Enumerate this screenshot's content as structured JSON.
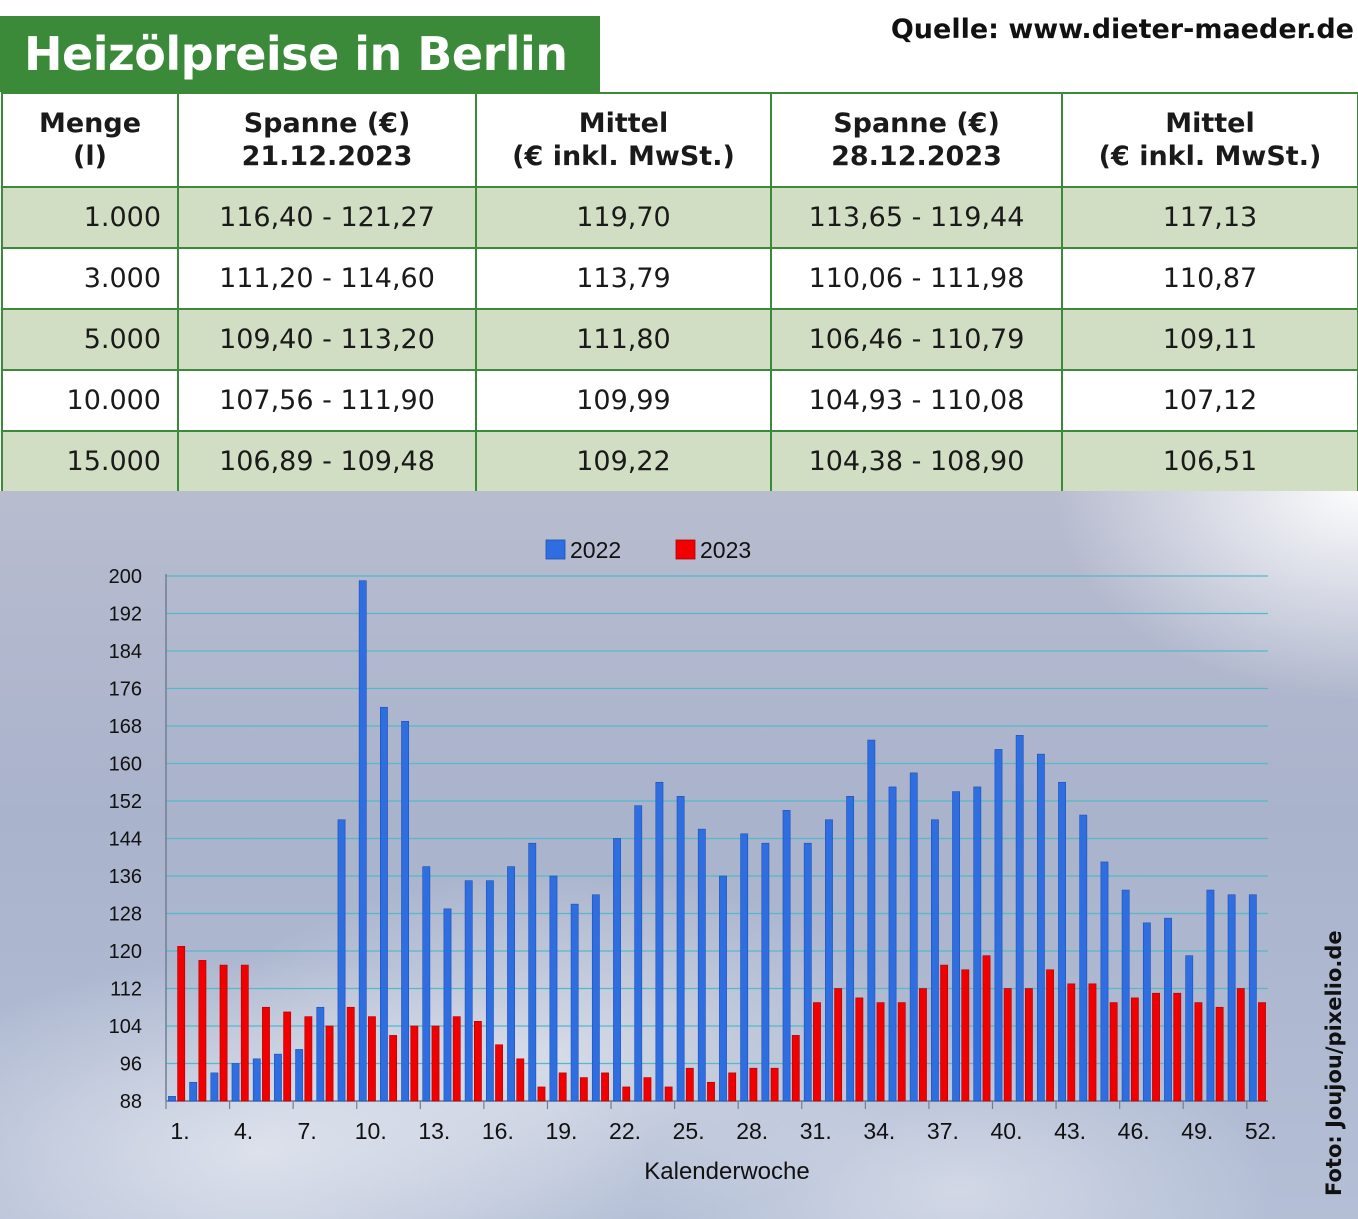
{
  "header": {
    "title": "Heizölpreise in Berlin",
    "source": "Quelle: www.dieter-maeder.de"
  },
  "table": {
    "headers": [
      [
        "Menge",
        "(l)"
      ],
      [
        "Spanne (€)",
        "21.12.2023"
      ],
      [
        "Mittel",
        "(€ inkl. MwSt.)"
      ],
      [
        "Spanne (€)",
        "28.12.2023"
      ],
      [
        "Mittel",
        "(€ inkl. MwSt.)"
      ]
    ],
    "rows": [
      [
        "1.000",
        "116,40 - 121,27",
        "119,70",
        "113,65 - 119,44",
        "117,13"
      ],
      [
        "3.000",
        "111,20 - 114,60",
        "113,79",
        "110,06 - 111,98",
        "110,87"
      ],
      [
        "5.000",
        "109,40 - 113,20",
        "111,80",
        "106,46 - 110,79",
        "109,11"
      ],
      [
        "10.000",
        "107,56 - 111,90",
        "109,99",
        "104,93 - 110,08",
        "107,12"
      ],
      [
        "15.000",
        "106,89 - 109,48",
        "109,22",
        "104,38 - 108,90",
        "106,51"
      ]
    ]
  },
  "photo_credit": "Foto: Joujou/pixelio.de",
  "chart_data": {
    "type": "bar",
    "xlabel": "Kalenderwoche",
    "ylabel": "",
    "ylim": [
      88,
      200
    ],
    "yticks": [
      88,
      96,
      104,
      112,
      120,
      128,
      136,
      144,
      152,
      160,
      168,
      176,
      184,
      192,
      200
    ],
    "x_tick_labels": [
      "1.",
      "4.",
      "7.",
      "10.",
      "13.",
      "16.",
      "19.",
      "22.",
      "25.",
      "28.",
      "31.",
      "34.",
      "37.",
      "40.",
      "43.",
      "46.",
      "49.",
      "52."
    ],
    "x_tick_weeks": [
      1,
      4,
      7,
      10,
      13,
      16,
      19,
      22,
      25,
      28,
      31,
      34,
      37,
      40,
      43,
      46,
      49,
      52
    ],
    "weeks": [
      1,
      2,
      3,
      4,
      5,
      6,
      7,
      8,
      9,
      10,
      11,
      12,
      13,
      14,
      15,
      16,
      17,
      18,
      19,
      20,
      21,
      22,
      23,
      24,
      25,
      26,
      27,
      28,
      29,
      30,
      31,
      32,
      33,
      34,
      35,
      36,
      37,
      38,
      39,
      40,
      41,
      42,
      43,
      44,
      45,
      46,
      47,
      48,
      49,
      50,
      51,
      52
    ],
    "legend_position": "top-center",
    "grid": true,
    "colors": {
      "2022": "#2f6ee0",
      "2023": "#f00000"
    },
    "series": [
      {
        "name": "2022",
        "values": [
          89,
          92,
          94,
          96,
          97,
          98,
          99,
          108,
          148,
          199,
          172,
          169,
          138,
          129,
          135,
          135,
          138,
          143,
          136,
          130,
          132,
          144,
          151,
          156,
          153,
          146,
          136,
          145,
          143,
          150,
          143,
          148,
          153,
          165,
          155,
          158,
          148,
          154,
          155,
          163,
          166,
          162,
          156,
          149,
          139,
          133,
          126,
          127,
          119,
          133,
          132,
          132
        ]
      },
      {
        "name": "2023",
        "values": [
          121,
          118,
          117,
          117,
          108,
          107,
          106,
          104,
          108,
          106,
          102,
          104,
          104,
          106,
          105,
          100,
          97,
          91,
          94,
          93,
          94,
          91,
          93,
          91,
          95,
          92,
          94,
          95,
          95,
          102,
          109,
          112,
          110,
          109,
          109,
          112,
          117,
          116,
          119,
          112,
          112,
          116,
          113,
          113,
          109,
          110,
          111,
          111,
          109,
          108,
          112,
          109
        ]
      }
    ]
  }
}
